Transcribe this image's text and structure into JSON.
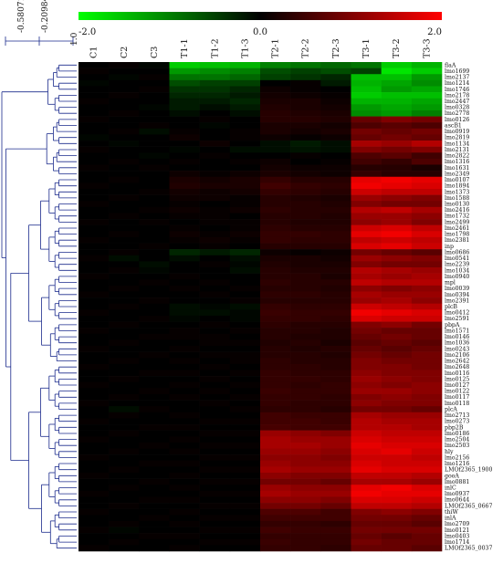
{
  "chart_data": {
    "type": "heatmap",
    "title": "",
    "color_scale": {
      "min": -2.0,
      "mid": 0.0,
      "max": 2.0,
      "min_label": "-2.0",
      "mid_label": "0.0",
      "max_label": "2.0",
      "low_color": "#00ff00",
      "mid_color": "#000000",
      "high_color": "#ff0000"
    },
    "dendrogram_scale": {
      "labels": [
        "-0.5807195",
        "-0.2098402",
        "1.0"
      ]
    },
    "columns": [
      "C1",
      "C2",
      "C3",
      "T1-1",
      "T1-2",
      "T1-3",
      "T2-1",
      "T2-2",
      "T2-3",
      "T3-1",
      "T3-2",
      "T3-3"
    ],
    "rows": [
      "flaA",
      "lmo1699",
      "lmo2137",
      "lmo1214",
      "lmo1746",
      "lmo2178",
      "lmo2447",
      "lmo0328",
      "lmo2778",
      "lmo0126",
      "ascB1",
      "lmo0919",
      "lmo2819",
      "lmo1134",
      "lmo2131",
      "lmo2822",
      "lmo1316",
      "lmo1631",
      "lmo2349",
      "lmo0107",
      "lmo1894",
      "lmo1373",
      "lmo1588",
      "lmo0130",
      "lmo2416",
      "lmo1732",
      "lmo2499",
      "lmo2461",
      "lmo1798",
      "lmo2381",
      "inp",
      "lmo0686",
      "lmo0541",
      "lmo2239",
      "lmo1034",
      "lmo0940",
      "mpl",
      "lmo0039",
      "lmo0394",
      "lmo2391",
      "plcB",
      "lmo0412",
      "lmo2591",
      "pbpA",
      "lmo1571",
      "lmo0146",
      "lmo1036",
      "lmo0243",
      "lmo2106",
      "lmo2642",
      "lmo2648",
      "lmo0116",
      "lmo0125",
      "lmo0127",
      "lmo0122",
      "lmo0117",
      "lmo0118",
      "plcA",
      "lmo2713",
      "lmo0273",
      "pbp2B",
      "lmo0186",
      "lmo2504",
      "lmo2503",
      "hly",
      "lmo2156",
      "lmo1216",
      "LMOf2365_1900",
      "gooA",
      "lmo0881",
      "inlC",
      "lmo0937",
      "lmo0644",
      "LMOf2365_0667",
      "thiW",
      "inlA",
      "lmo2709",
      "lmo0121",
      "lmo0403",
      "lmo1714",
      "LMOf2365_0037"
    ],
    "values": [
      [
        0.0,
        0.05,
        -0.05,
        -1.6,
        -1.5,
        -1.4,
        -1.0,
        -0.9,
        -0.8,
        -0.9,
        -1.6,
        -1.4
      ],
      [
        0.05,
        0.0,
        0.0,
        -1.2,
        -1.1,
        -1.0,
        -0.6,
        -0.5,
        -0.6,
        -0.5,
        -1.8,
        -1.6
      ],
      [
        0.0,
        -0.05,
        0.05,
        -0.9,
        -0.9,
        -0.8,
        -0.5,
        -0.4,
        -0.3,
        -1.5,
        -1.5,
        -1.2
      ],
      [
        -0.05,
        0.0,
        0.0,
        -0.6,
        -0.5,
        -0.5,
        0.0,
        0.05,
        -0.2,
        -1.4,
        -1.3,
        -1.1
      ],
      [
        0.0,
        0.0,
        0.05,
        -0.4,
        -0.4,
        -0.3,
        0.1,
        0.05,
        0.0,
        -1.5,
        -1.2,
        -1.3
      ],
      [
        0.0,
        0.05,
        0.0,
        -0.3,
        -0.3,
        -0.2,
        0.15,
        0.1,
        0.05,
        -1.6,
        -1.5,
        -1.5
      ],
      [
        0.05,
        0.0,
        0.0,
        -0.2,
        -0.2,
        -0.3,
        0.2,
        0.2,
        0.1,
        -1.4,
        -1.4,
        -1.3
      ],
      [
        0.0,
        0.0,
        -0.05,
        -0.2,
        -0.1,
        -0.2,
        0.25,
        0.2,
        0.15,
        -1.2,
        -1.3,
        -1.2
      ],
      [
        0.0,
        0.05,
        0.0,
        -0.1,
        0.0,
        -0.1,
        0.3,
        0.25,
        0.2,
        -1.1,
        -1.2,
        -1.0
      ],
      [
        0.05,
        0.0,
        0.0,
        0.0,
        0.05,
        0.0,
        0.3,
        0.3,
        0.25,
        0.8,
        1.0,
        0.9
      ],
      [
        0.0,
        0.0,
        0.05,
        0.0,
        -0.05,
        0.0,
        0.2,
        0.2,
        0.15,
        0.6,
        0.7,
        0.6
      ],
      [
        0.0,
        0.05,
        -0.1,
        0.05,
        0.0,
        0.05,
        0.2,
        0.15,
        0.2,
        0.9,
        0.8,
        0.9
      ],
      [
        -0.05,
        0.0,
        0.0,
        0.1,
        0.0,
        0.05,
        0.1,
        0.05,
        0.1,
        0.8,
        0.9,
        0.8
      ],
      [
        0.0,
        -0.05,
        0.0,
        0.0,
        0.1,
        0.0,
        -0.1,
        -0.2,
        -0.1,
        1.3,
        1.2,
        1.4
      ],
      [
        0.05,
        0.0,
        0.0,
        -0.05,
        0.0,
        -0.1,
        -0.1,
        -0.15,
        -0.1,
        1.0,
        0.9,
        1.0
      ],
      [
        0.0,
        0.0,
        -0.05,
        0.0,
        0.05,
        0.0,
        0.0,
        0.05,
        0.0,
        0.6,
        0.7,
        0.5
      ],
      [
        0.0,
        0.05,
        0.0,
        0.05,
        0.0,
        0.05,
        0.1,
        0.0,
        0.05,
        0.5,
        0.4,
        0.6
      ],
      [
        0.05,
        0.0,
        0.05,
        0.0,
        0.0,
        0.0,
        0.15,
        0.1,
        0.1,
        0.3,
        0.3,
        0.2
      ],
      [
        0.0,
        0.0,
        0.0,
        0.1,
        0.05,
        0.1,
        0.2,
        0.15,
        0.1,
        0.4,
        0.3,
        0.3
      ],
      [
        0.0,
        0.05,
        0.0,
        0.2,
        0.15,
        0.2,
        0.4,
        0.3,
        0.3,
        1.8,
        1.9,
        1.8
      ],
      [
        0.05,
        0.0,
        0.0,
        0.25,
        0.2,
        0.2,
        0.5,
        0.4,
        0.35,
        1.9,
        1.8,
        1.7
      ],
      [
        0.0,
        0.0,
        0.05,
        0.15,
        0.1,
        0.15,
        0.4,
        0.35,
        0.3,
        1.6,
        1.5,
        1.5
      ],
      [
        0.0,
        0.05,
        0.0,
        0.1,
        0.1,
        0.05,
        0.3,
        0.25,
        0.2,
        1.2,
        1.1,
        1.0
      ],
      [
        0.05,
        0.0,
        0.0,
        0.05,
        0.0,
        0.05,
        0.3,
        0.3,
        0.25,
        1.0,
        0.9,
        0.9
      ],
      [
        0.0,
        0.0,
        0.05,
        0.1,
        0.05,
        0.1,
        0.35,
        0.3,
        0.3,
        1.4,
        1.5,
        1.3
      ],
      [
        0.0,
        0.05,
        0.0,
        0.05,
        0.05,
        0.0,
        0.3,
        0.3,
        0.25,
        1.2,
        1.2,
        1.1
      ],
      [
        0.05,
        0.0,
        0.05,
        0.0,
        0.05,
        0.05,
        0.3,
        0.25,
        0.25,
        1.1,
        1.2,
        1.0
      ],
      [
        0.0,
        0.0,
        0.0,
        0.05,
        0.0,
        0.05,
        0.35,
        0.3,
        0.3,
        1.6,
        1.7,
        1.5
      ],
      [
        0.0,
        0.05,
        0.0,
        0.1,
        0.05,
        0.1,
        0.4,
        0.4,
        0.35,
        1.8,
        1.9,
        1.7
      ],
      [
        0.05,
        0.0,
        0.0,
        0.05,
        0.1,
        0.05,
        0.4,
        0.35,
        0.35,
        1.5,
        1.6,
        1.5
      ],
      [
        0.0,
        0.0,
        0.05,
        0.0,
        0.05,
        0.0,
        0.3,
        0.3,
        0.3,
        1.7,
        1.8,
        1.6
      ],
      [
        0.0,
        0.05,
        0.0,
        -0.3,
        -0.2,
        -0.3,
        0.1,
        0.05,
        0.1,
        0.9,
        0.8,
        0.7
      ],
      [
        0.05,
        -0.1,
        0.0,
        -0.1,
        0.0,
        -0.1,
        0.2,
        0.2,
        0.15,
        1.2,
        1.1,
        1.0
      ],
      [
        0.0,
        0.0,
        -0.1,
        0.0,
        0.05,
        -0.05,
        0.25,
        0.2,
        0.2,
        1.0,
        0.9,
        0.9
      ],
      [
        0.0,
        0.05,
        -0.05,
        0.0,
        0.0,
        -0.1,
        0.3,
        0.25,
        0.25,
        1.4,
        1.3,
        1.2
      ],
      [
        0.05,
        0.0,
        0.0,
        0.05,
        0.0,
        0.0,
        0.3,
        0.3,
        0.2,
        1.3,
        1.2,
        1.3
      ],
      [
        0.0,
        0.0,
        0.05,
        0.0,
        0.05,
        0.0,
        0.35,
        0.3,
        0.3,
        1.5,
        1.4,
        1.4
      ],
      [
        0.0,
        0.05,
        0.0,
        0.05,
        0.0,
        0.05,
        0.3,
        0.3,
        0.25,
        1.1,
        1.0,
        1.1
      ],
      [
        0.05,
        0.0,
        0.0,
        0.0,
        0.05,
        0.0,
        0.35,
        0.35,
        0.3,
        1.3,
        1.2,
        1.2
      ],
      [
        0.0,
        0.0,
        0.05,
        0.0,
        0.0,
        0.05,
        0.3,
        0.3,
        0.3,
        1.2,
        1.3,
        1.1
      ],
      [
        0.0,
        0.05,
        0.0,
        -0.1,
        -0.05,
        -0.1,
        0.4,
        0.35,
        0.35,
        1.6,
        1.5,
        1.4
      ],
      [
        0.05,
        0.0,
        0.0,
        -0.1,
        -0.1,
        -0.05,
        0.45,
        0.4,
        0.4,
        1.9,
        1.8,
        1.7
      ],
      [
        0.0,
        0.0,
        0.05,
        -0.05,
        0.0,
        -0.05,
        0.4,
        0.4,
        0.35,
        1.7,
        1.6,
        1.6
      ],
      [
        0.0,
        0.05,
        0.0,
        0.0,
        0.05,
        0.0,
        0.35,
        0.3,
        0.3,
        1.0,
        1.1,
        0.9
      ],
      [
        0.05,
        0.0,
        0.0,
        0.05,
        0.0,
        0.05,
        0.3,
        0.3,
        0.25,
        0.9,
        0.8,
        0.8
      ],
      [
        0.0,
        0.0,
        0.05,
        0.05,
        0.05,
        0.0,
        0.3,
        0.25,
        0.25,
        0.8,
        0.9,
        0.8
      ],
      [
        0.0,
        0.05,
        0.0,
        0.0,
        0.05,
        0.05,
        0.25,
        0.3,
        0.2,
        0.7,
        0.8,
        0.7
      ],
      [
        0.05,
        0.0,
        0.0,
        0.05,
        0.0,
        0.0,
        0.3,
        0.25,
        0.3,
        0.8,
        0.7,
        0.8
      ],
      [
        0.0,
        0.0,
        0.05,
        0.0,
        0.05,
        0.05,
        0.3,
        0.3,
        0.25,
        0.9,
        0.8,
        0.9
      ],
      [
        0.0,
        0.05,
        0.0,
        0.05,
        0.0,
        0.05,
        0.35,
        0.3,
        0.3,
        1.0,
        0.9,
        0.9
      ],
      [
        0.05,
        0.0,
        0.0,
        0.0,
        0.05,
        0.0,
        0.35,
        0.35,
        0.3,
        1.0,
        1.0,
        0.9
      ],
      [
        0.0,
        0.0,
        0.05,
        0.05,
        0.0,
        0.05,
        0.4,
        0.35,
        0.35,
        1.1,
        1.0,
        1.0
      ],
      [
        0.0,
        0.05,
        0.0,
        0.0,
        0.05,
        0.0,
        0.4,
        0.4,
        0.35,
        1.2,
        1.1,
        1.0
      ],
      [
        0.05,
        0.0,
        0.0,
        0.05,
        0.0,
        0.05,
        0.4,
        0.35,
        0.4,
        1.1,
        1.0,
        1.1
      ],
      [
        0.0,
        0.0,
        0.05,
        0.0,
        0.05,
        0.0,
        0.45,
        0.4,
        0.4,
        1.2,
        1.2,
        1.1
      ],
      [
        0.0,
        0.05,
        0.0,
        0.05,
        0.0,
        0.05,
        0.4,
        0.4,
        0.35,
        1.0,
        1.1,
        1.0
      ],
      [
        0.05,
        0.0,
        0.0,
        0.0,
        0.05,
        0.0,
        0.4,
        0.35,
        0.35,
        1.1,
        1.0,
        1.0
      ],
      [
        0.0,
        -0.1,
        0.05,
        0.0,
        0.0,
        0.05,
        0.35,
        0.35,
        0.3,
        0.9,
        0.9,
        0.8
      ],
      [
        0.0,
        0.05,
        0.0,
        0.05,
        0.0,
        0.0,
        0.5,
        0.45,
        0.45,
        1.3,
        1.2,
        1.2
      ],
      [
        0.05,
        0.0,
        0.0,
        0.0,
        0.05,
        0.05,
        0.5,
        0.5,
        0.45,
        1.4,
        1.3,
        1.3
      ],
      [
        0.0,
        0.0,
        0.05,
        0.05,
        0.0,
        0.0,
        0.55,
        0.5,
        0.5,
        1.4,
        1.4,
        1.3
      ],
      [
        0.0,
        0.05,
        0.0,
        0.0,
        0.05,
        0.05,
        1.2,
        1.1,
        1.0,
        1.6,
        1.5,
        1.5
      ],
      [
        0.05,
        0.0,
        0.0,
        0.05,
        0.0,
        0.0,
        1.3,
        1.2,
        1.2,
        1.7,
        1.6,
        1.6
      ],
      [
        0.0,
        0.0,
        0.05,
        0.0,
        0.05,
        0.05,
        1.3,
        1.3,
        1.2,
        1.8,
        1.7,
        1.7
      ],
      [
        0.0,
        0.05,
        0.0,
        0.05,
        0.0,
        0.0,
        1.2,
        1.2,
        1.1,
        1.7,
        1.8,
        1.6
      ],
      [
        0.05,
        0.0,
        0.0,
        0.0,
        0.05,
        0.05,
        1.1,
        1.1,
        1.0,
        1.6,
        1.6,
        1.5
      ],
      [
        0.0,
        0.0,
        0.05,
        0.05,
        0.0,
        0.0,
        1.2,
        1.1,
        1.1,
        1.7,
        1.6,
        1.6
      ],
      [
        0.0,
        0.05,
        0.0,
        0.0,
        0.05,
        0.05,
        1.3,
        1.2,
        1.2,
        1.8,
        1.7,
        1.7
      ],
      [
        0.05,
        0.0,
        0.0,
        0.05,
        0.0,
        0.0,
        1.1,
        1.0,
        1.0,
        1.5,
        1.5,
        1.4
      ],
      [
        0.0,
        0.0,
        0.05,
        0.0,
        0.05,
        0.05,
        0.9,
        0.9,
        0.8,
        1.3,
        1.3,
        1.2
      ],
      [
        0.0,
        0.05,
        0.0,
        0.05,
        0.0,
        0.0,
        1.2,
        1.1,
        1.1,
        1.8,
        1.9,
        1.7
      ],
      [
        0.05,
        0.0,
        0.0,
        0.0,
        0.05,
        0.05,
        1.3,
        1.2,
        1.2,
        1.9,
        1.8,
        1.8
      ],
      [
        0.0,
        0.0,
        0.05,
        0.05,
        0.0,
        0.0,
        1.1,
        1.1,
        1.0,
        1.7,
        1.7,
        1.6
      ],
      [
        0.0,
        0.05,
        0.0,
        0.0,
        0.05,
        0.05,
        0.9,
        0.9,
        0.8,
        1.5,
        1.5,
        1.4
      ],
      [
        0.05,
        0.0,
        0.0,
        0.05,
        0.0,
        0.0,
        0.6,
        0.6,
        0.5,
        1.0,
        1.1,
        1.0
      ],
      [
        0.0,
        0.0,
        0.05,
        0.0,
        0.05,
        0.05,
        0.5,
        0.5,
        0.5,
        0.9,
        0.9,
        0.8
      ],
      [
        0.0,
        0.05,
        0.0,
        0.05,
        0.0,
        0.0,
        0.4,
        0.4,
        0.35,
        0.8,
        0.8,
        0.7
      ],
      [
        0.05,
        -0.05,
        0.0,
        0.0,
        0.05,
        0.05,
        0.5,
        0.45,
        0.45,
        0.9,
        0.9,
        0.9
      ],
      [
        0.0,
        0.0,
        0.05,
        0.05,
        0.0,
        0.0,
        0.4,
        0.4,
        0.4,
        0.8,
        0.7,
        0.8
      ],
      [
        0.0,
        0.05,
        0.0,
        0.0,
        0.05,
        0.05,
        0.45,
        0.4,
        0.4,
        0.9,
        0.8,
        0.8
      ],
      [
        0.05,
        0.0,
        0.0,
        0.05,
        0.0,
        0.0,
        0.4,
        0.4,
        0.35,
        0.8,
        0.8,
        0.7
      ]
    ],
    "legend": "top",
    "grid": false
  }
}
